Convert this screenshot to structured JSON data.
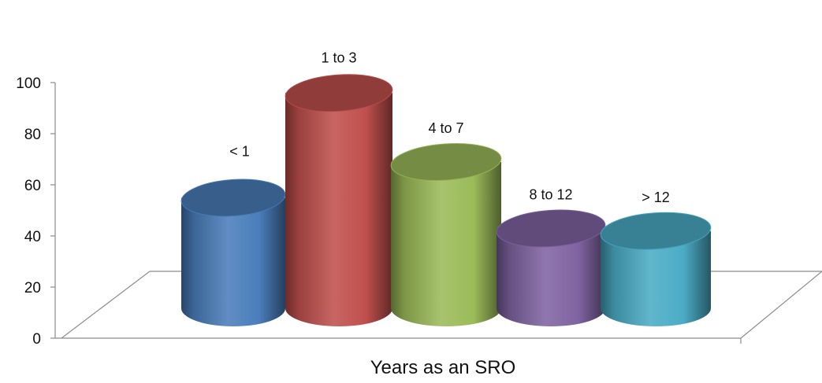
{
  "chart_data": {
    "type": "bar",
    "subtype": "3d-cylinder",
    "categories": [
      "< 1",
      "1 to 3",
      "4 to 7",
      "8 to 12",
      "> 12"
    ],
    "values": [
      62,
      103,
      76,
      50,
      49
    ],
    "data_labels": [
      "< 1",
      "1 to 3",
      "4 to 7",
      "8 to 12",
      "> 12"
    ],
    "colors": [
      "#4a7ebb",
      "#c0504d",
      "#9bbb59",
      "#8064a2",
      "#4bacc6"
    ],
    "title": "",
    "xlabel": "Years as an SRO",
    "ylabel": "",
    "ylim": [
      0,
      100
    ],
    "y_ticks": [
      0,
      20,
      40,
      60,
      80,
      100
    ],
    "grid": false,
    "legend": "none"
  }
}
